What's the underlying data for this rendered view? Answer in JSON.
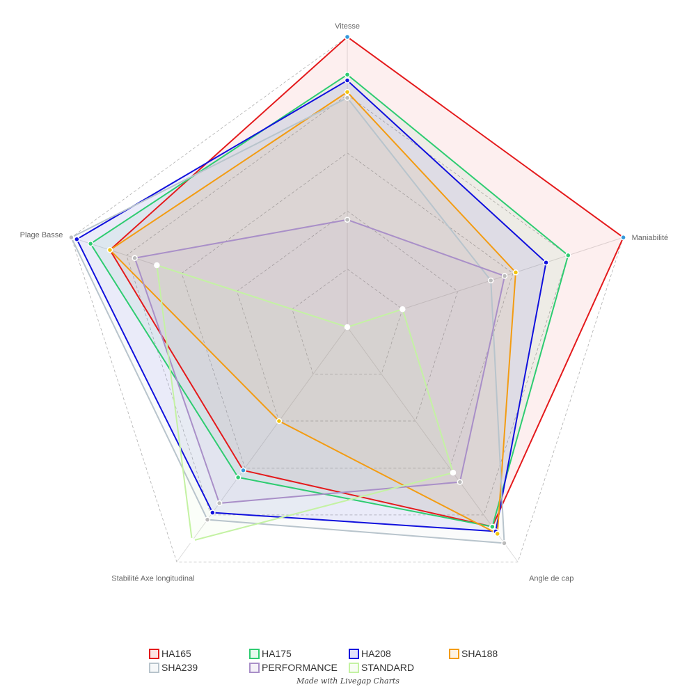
{
  "chart_data": {
    "type": "radar",
    "title": "",
    "axes": [
      "Vitesse",
      "Maniabilité",
      "Angle de cap",
      "Stabilité Axe longitudinal",
      "Plage Basse"
    ],
    "range": [
      0,
      100
    ],
    "series": [
      {
        "name": "HA165",
        "color": "#e41a1c",
        "values": [
          100,
          100,
          85,
          61,
          86
        ]
      },
      {
        "name": "HA175",
        "color": "#2ecc71",
        "values": [
          87,
          80,
          85,
          64,
          93
        ]
      },
      {
        "name": "HA208",
        "color": "#1010dd",
        "values": [
          85,
          72,
          87,
          79,
          98
        ]
      },
      {
        "name": "SHA188",
        "color": "#f39c12",
        "values": [
          81,
          61,
          88,
          40,
          86
        ]
      },
      {
        "name": "SHA239",
        "color": "#b8c4cc",
        "values": [
          79,
          52,
          92,
          82,
          100
        ]
      },
      {
        "name": "PERFORMANCE",
        "color": "#a98fc8",
        "values": [
          37,
          57,
          66,
          75,
          77
        ]
      },
      {
        "name": "STANDARD",
        "color": "#c4f2a3",
        "values": [
          0,
          20,
          62,
          91,
          69
        ]
      }
    ],
    "grid": true,
    "legend_position": "bottom"
  },
  "credit": "Made with Livegap Charts"
}
